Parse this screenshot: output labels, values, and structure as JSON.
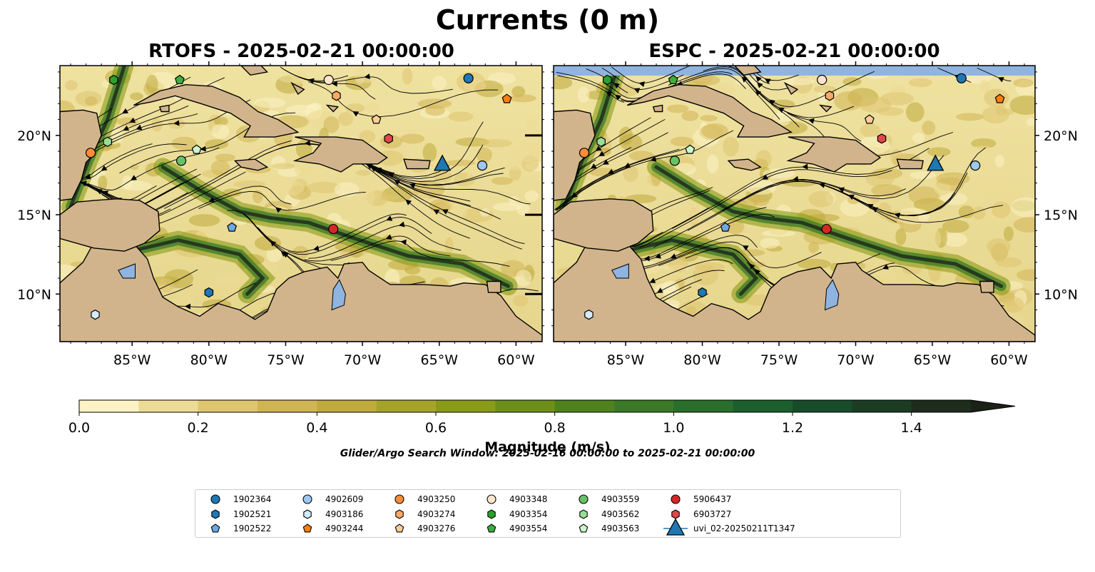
{
  "suptitle": "Currents (0 m)",
  "panels": [
    {
      "title": "RTOFS - 2025-02-21 00:00:00"
    },
    {
      "title": "ESPC - 2025-02-21 00:00:00"
    }
  ],
  "colorbar": {
    "label": "Magnitude (m/s)",
    "ticks": [
      "0.0",
      "0.2",
      "0.4",
      "0.6",
      "0.8",
      "1.0",
      "1.2",
      "1.4"
    ],
    "colors": [
      "#fbf3c4",
      "#ecdb95",
      "#dfc571",
      "#d1b555",
      "#bfaa3d",
      "#a6a32b",
      "#8a9b19",
      "#6d8f1a",
      "#4f821e",
      "#3a7a26",
      "#2a6e2b",
      "#1a5f2c",
      "#164c2a",
      "#1a3d24",
      "#1d2c1c",
      "#1b2116"
    ]
  },
  "search_window": "Glider/Argo Search Window: 2025-02-16 00:00:00 to 2025-02-21 00:00:00",
  "chart_data": {
    "type": "heatmap",
    "title": "Currents (0 m)",
    "colorbar_label": "Magnitude (m/s)",
    "colorbar_range": [
      0.0,
      1.5
    ],
    "xlim": [
      -89.7,
      -58.3
    ],
    "ylim": [
      7.0,
      24.4
    ],
    "xticks": [
      "85°W",
      "80°W",
      "75°W",
      "70°W",
      "65°W",
      "60°W"
    ],
    "yticks": [
      "10°N",
      "15°N",
      "20°N"
    ],
    "panels": [
      "RTOFS - 2025-02-21 00:00:00",
      "ESPC - 2025-02-21 00:00:00"
    ],
    "series": [
      {
        "name": "1902364",
        "marker": "circle",
        "color": "#1f77b4",
        "x": -63.1,
        "y": 23.6
      },
      {
        "name": "1902521",
        "marker": "hexagon",
        "color": "#1f77b4",
        "x": -80.0,
        "y": 10.1
      },
      {
        "name": "1902522",
        "marker": "pentagon",
        "color": "#6ca8e0",
        "x": -78.5,
        "y": 14.2
      },
      {
        "name": "4902609",
        "marker": "circle",
        "color": "#9ec8ee",
        "x": -62.2,
        "y": 18.1
      },
      {
        "name": "4903186",
        "marker": "hexagon",
        "color": "#d6eafb",
        "x": -87.4,
        "y": 8.7
      },
      {
        "name": "4903244",
        "marker": "pentagon",
        "color": "#ff7f0e",
        "x": -60.6,
        "y": 22.3
      },
      {
        "name": "4903250",
        "marker": "circle",
        "color": "#ff8c38",
        "x": -87.7,
        "y": 18.9
      },
      {
        "name": "4903274",
        "marker": "hexagon",
        "color": "#ffaa66",
        "x": -71.7,
        "y": 22.5
      },
      {
        "name": "4903276",
        "marker": "pentagon",
        "color": "#ffcc99",
        "x": -69.1,
        "y": 21.0
      },
      {
        "name": "4903348",
        "marker": "circle",
        "color": "#ffe5cc",
        "x": -72.2,
        "y": 23.5
      },
      {
        "name": "4903354",
        "marker": "hexagon",
        "color": "#2ca02c",
        "x": -86.2,
        "y": 23.5
      },
      {
        "name": "4903554",
        "marker": "pentagon",
        "color": "#3cb03c",
        "x": -81.9,
        "y": 23.5
      },
      {
        "name": "4903559",
        "marker": "circle",
        "color": "#66c266",
        "x": -81.8,
        "y": 18.4
      },
      {
        "name": "4903562",
        "marker": "hexagon",
        "color": "#99dd99",
        "x": -86.6,
        "y": 19.6
      },
      {
        "name": "4903563",
        "marker": "pentagon",
        "color": "#ccf5cc",
        "x": -80.8,
        "y": 19.1
      },
      {
        "name": "5906437",
        "marker": "circle",
        "color": "#d62728",
        "x": -71.9,
        "y": 14.1
      },
      {
        "name": "6903727",
        "marker": "hexagon",
        "color": "#e04848",
        "x": -68.3,
        "y": 19.8
      },
      {
        "name": "uvi_02-20250211T1347",
        "marker": "triangle",
        "color": "#1f77b4",
        "x": -64.8,
        "y": 18.2
      }
    ]
  }
}
